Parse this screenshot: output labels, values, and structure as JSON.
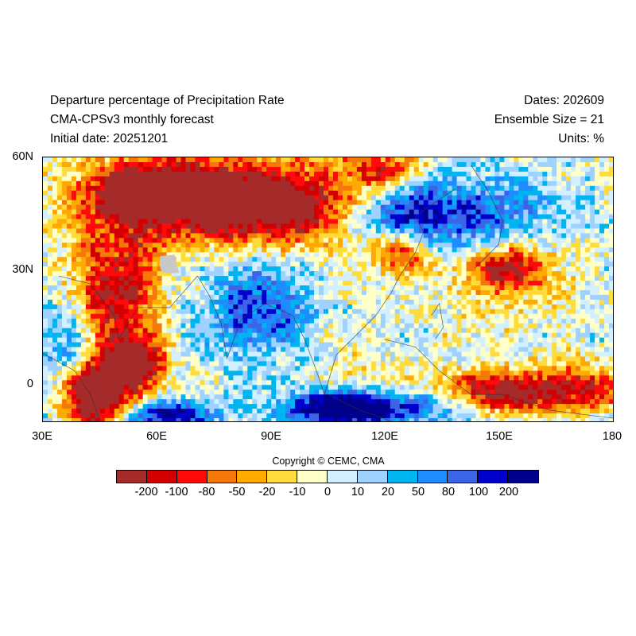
{
  "header": {
    "title": "Departure percentage of Precipitation Rate",
    "model": "CMA-CPSv3 monthly forecast",
    "initial_date": "Initial date: 20251201",
    "dates": "Dates: 202609",
    "ensemble": "Ensemble Size = 21",
    "units": "Units: %"
  },
  "map": {
    "lon_ticks": [
      "30E",
      "60E",
      "90E",
      "120E",
      "150E",
      "180"
    ],
    "lat_ticks": [
      "60N",
      "30N",
      "0"
    ],
    "lon_range": [
      30,
      180
    ],
    "lat_range": [
      -10,
      60
    ],
    "missing_color": "#c8c8c8",
    "coastline_color": "#333333"
  },
  "copyright": "Copyright © CEMC, CMA",
  "colorbar": {
    "colors": [
      "#a52a2a",
      "#d20000",
      "#ff0a0a",
      "#f5780a",
      "#ffaa00",
      "#ffdc3c",
      "#ffffc8",
      "#d2f0ff",
      "#a0d2ff",
      "#00b4f0",
      "#1e8cff",
      "#3c64e6",
      "#0000cd",
      "#00008b"
    ],
    "labels": [
      "-200",
      "-100",
      "-80",
      "-50",
      "-20",
      "-10",
      "0",
      "10",
      "20",
      "50",
      "80",
      "100",
      "200"
    ]
  }
}
